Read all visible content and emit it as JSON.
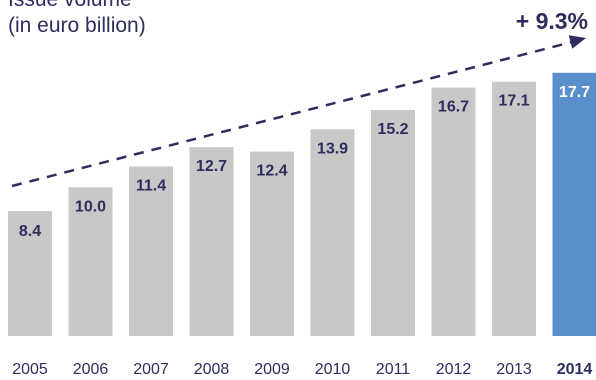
{
  "chart_data": {
    "type": "bar",
    "ylabel_lines": [
      "Issue volume",
      "(in euro billion)"
    ],
    "annotation": "+ 9.3%",
    "categories": [
      "2005",
      "2006",
      "2007",
      "2008",
      "2009",
      "2010",
      "2011",
      "2012",
      "2013",
      "2014"
    ],
    "value_labels": [
      "8.4",
      "10.0",
      "11.4",
      "12.7",
      "12.4",
      "13.9",
      "15.2",
      "16.7",
      "17.1",
      "17.7"
    ],
    "values": [
      8.4,
      10.0,
      11.4,
      12.7,
      12.4,
      13.9,
      15.2,
      16.7,
      17.1,
      17.7
    ],
    "highlight_index": 9,
    "trend_line": "dashed arrow rising from 2005 to 2014",
    "ylim": [
      0,
      18
    ],
    "grid": false,
    "colors": {
      "bar": "#c8c8c8",
      "bar_highlight": "#5b8fcc",
      "label_text": "#2e2e5e",
      "label_text_highlight": "#ffffff",
      "trend": "#2e2e5e"
    }
  }
}
